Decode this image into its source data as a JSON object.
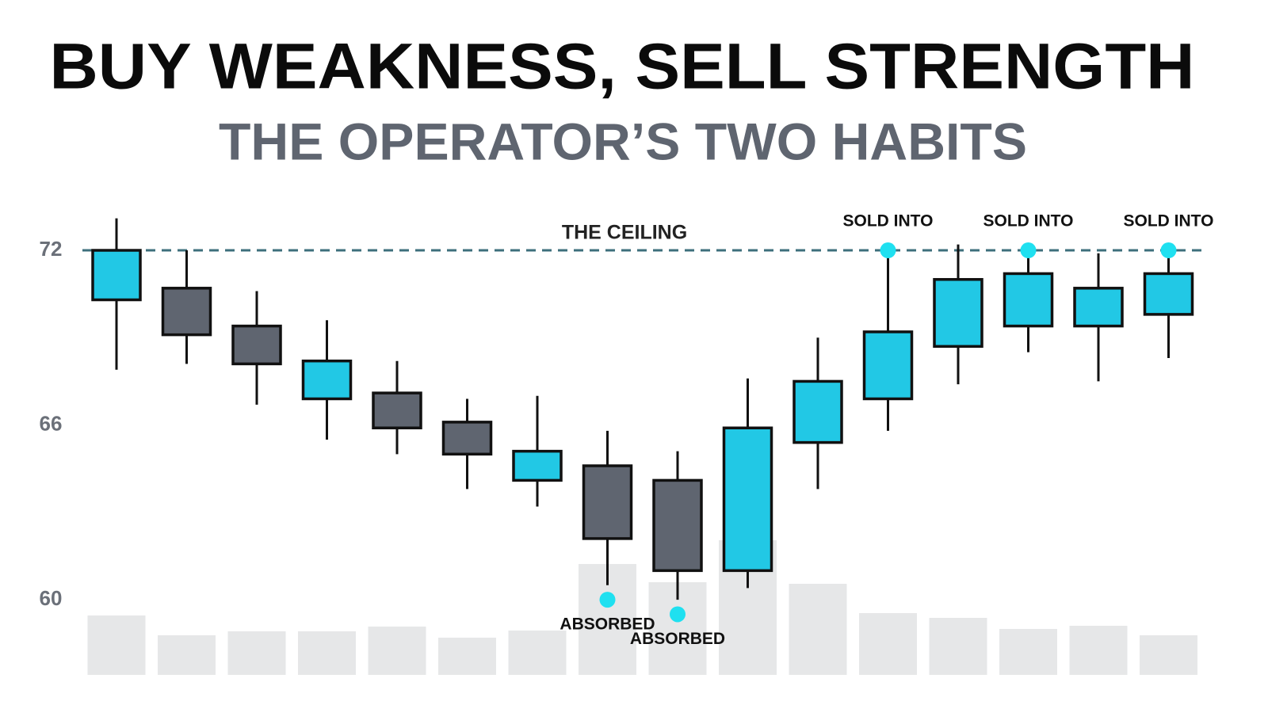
{
  "chart_data": {
    "type": "candlestick",
    "title": "BUY WEAKNESS, SELL STRENGTH",
    "subtitle": "THE OPERATOR’S TWO HABITS",
    "open": [
      70.3,
      70.7,
      69.4,
      66.9,
      67.1,
      66.1,
      64.1,
      64.6,
      64.1,
      61.0,
      65.4,
      66.9,
      68.7,
      69.4,
      69.4,
      69.8
    ],
    "high": [
      73.1,
      72.0,
      70.6,
      69.6,
      68.2,
      66.9,
      67.0,
      65.8,
      65.1,
      67.6,
      69.0,
      72.0,
      72.2,
      72.0,
      71.9,
      72.0
    ],
    "low": [
      67.9,
      68.1,
      66.7,
      65.5,
      65.0,
      63.8,
      63.2,
      60.5,
      60.0,
      60.4,
      63.8,
      65.8,
      67.4,
      68.5,
      67.5,
      68.3
    ],
    "close": [
      72.0,
      69.1,
      68.1,
      68.2,
      65.9,
      65.0,
      65.1,
      62.1,
      61.0,
      65.9,
      67.5,
      69.2,
      71.0,
      71.2,
      70.7,
      71.2
    ],
    "volume": [
      75,
      50,
      55,
      55,
      61,
      47,
      56,
      140,
      117,
      170,
      115,
      78,
      72,
      58,
      62,
      50
    ],
    "signals": [
      null,
      null,
      null,
      null,
      null,
      null,
      null,
      "ABSORBED",
      "ABSORBED",
      null,
      null,
      "SOLD INTO",
      null,
      "SOLD INTO",
      null,
      "SOLD INTO"
    ],
    "signal_values": [
      null,
      null,
      null,
      null,
      null,
      null,
      null,
      60.0,
      59.5,
      null,
      null,
      72.0,
      null,
      72.0,
      null,
      72.0
    ],
    "ceiling": {
      "label": "THE CEILING",
      "value": 72
    },
    "ylim": [
      57.5,
      74
    ],
    "yticks": [
      60,
      66,
      72
    ],
    "y2lim": [
      0,
      450
    ],
    "up_color": "#22c8e5",
    "down_color": "#5f6570",
    "volume_color": "#e6e7e8",
    "signal_color": "#1fe0f0",
    "ceiling_color": "#3d6f7c"
  }
}
